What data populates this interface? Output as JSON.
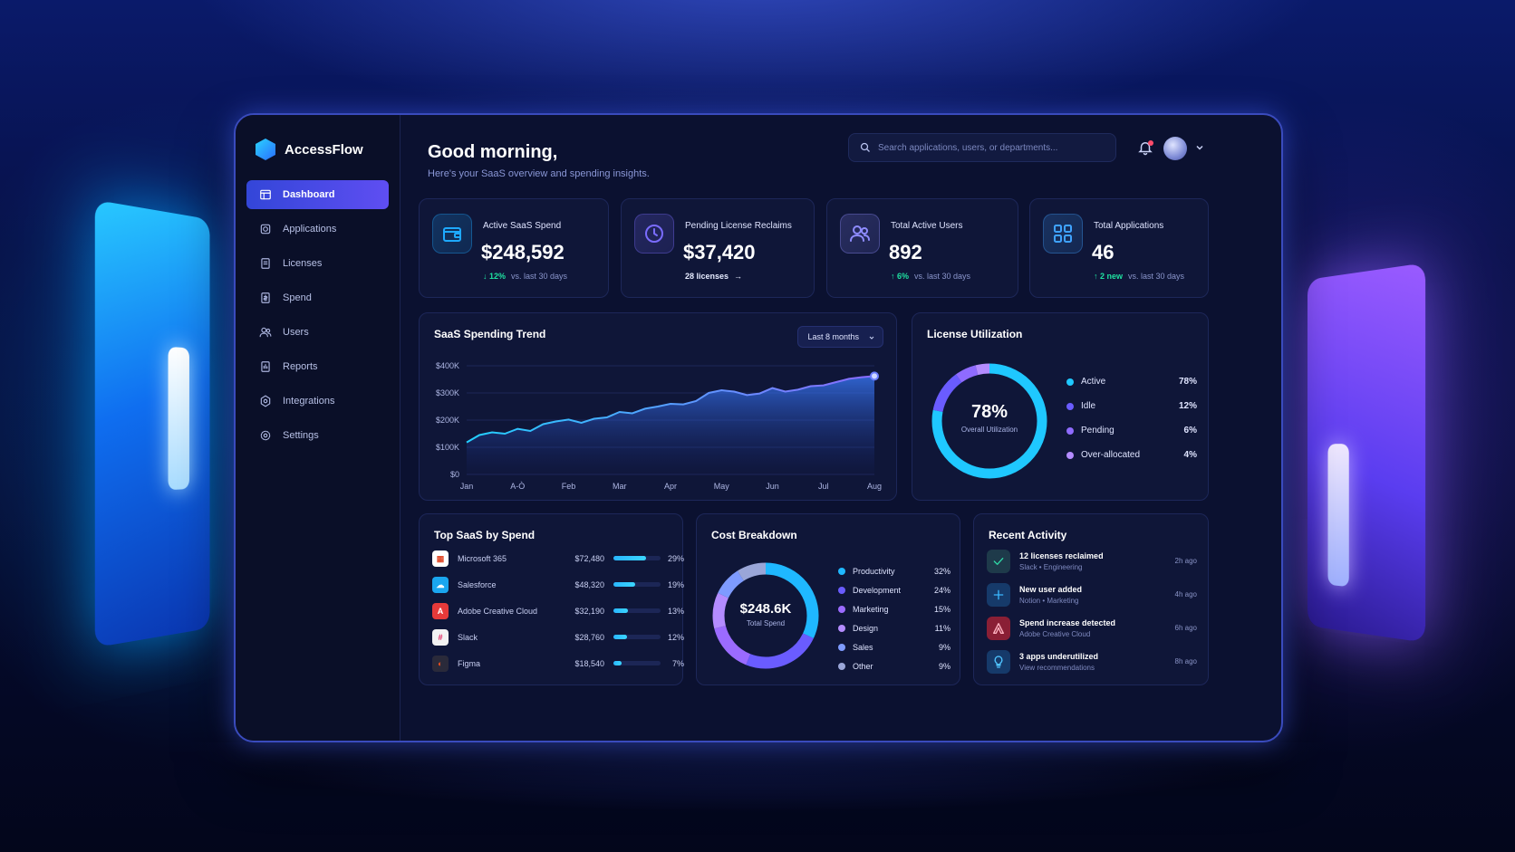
{
  "app": {
    "name": "AccessFlow"
  },
  "sidebar": {
    "items": [
      {
        "label": "Dashboard",
        "icon": "dashboard-icon",
        "active": true
      },
      {
        "label": "Applications",
        "icon": "applications-icon"
      },
      {
        "label": "Licenses",
        "icon": "licenses-icon"
      },
      {
        "label": "Spend",
        "icon": "spend-icon"
      },
      {
        "label": "Users",
        "icon": "users-icon"
      },
      {
        "label": "Reports",
        "icon": "reports-icon"
      },
      {
        "label": "Integrations",
        "icon": "integrations-icon"
      },
      {
        "label": "Settings",
        "icon": "settings-icon"
      }
    ]
  },
  "header": {
    "greeting": "Good morning,",
    "subtitle": "Here's your SaaS overview and spending insights.",
    "search_placeholder": "Search applications, users, or departments..."
  },
  "kpis": [
    {
      "label": "Active SaaS Spend",
      "value": "$248,592",
      "delta": "12%",
      "delta_direction": "down",
      "note": "vs. last 30 days",
      "icon": "wallet-icon"
    },
    {
      "label": "Pending License Reclaims",
      "value": "$37,420",
      "link": "28 licenses",
      "icon": "clock-icon"
    },
    {
      "label": "Total Active Users",
      "value": "892",
      "delta": "6%",
      "delta_direction": "up",
      "note": "vs. last 30 days",
      "icon": "users-icon"
    },
    {
      "label": "Total Applications",
      "value": "46",
      "delta": "2 new",
      "delta_direction": "up",
      "note": "vs. last 30 days",
      "icon": "grid-icon"
    }
  ],
  "trend": {
    "title": "SaaS Spending Trend",
    "range": "Last 8 months"
  },
  "utilization": {
    "title": "License Utilization",
    "center_value": "78%",
    "center_label": "Overall Utilization",
    "legend": [
      {
        "label": "Active",
        "pct": "78%",
        "value": 78,
        "color": "#1fc8ff"
      },
      {
        "label": "Idle",
        "pct": "12%",
        "value": 12,
        "color": "#6a5cff"
      },
      {
        "label": "Pending",
        "pct": "6%",
        "value": 6,
        "color": "#8f6bff"
      },
      {
        "label": "Over-allocated",
        "pct": "4%",
        "value": 4,
        "color": "#b48cff"
      }
    ]
  },
  "top_saas": {
    "title": "Top SaaS by Spend",
    "rows": [
      {
        "name": "Microsoft 365",
        "amount": "$72,480",
        "pct": "29%",
        "share": 0.29,
        "icon_color": "#ffffff",
        "icon": "ms365-icon"
      },
      {
        "name": "Salesforce",
        "amount": "$48,320",
        "pct": "19%",
        "share": 0.19,
        "icon_color": "#1aa6f0",
        "icon": "salesforce-icon"
      },
      {
        "name": "Adobe Creative Cloud",
        "amount": "$32,190",
        "pct": "13%",
        "share": 0.13,
        "icon_color": "#e63a3a",
        "icon": "adobe-icon"
      },
      {
        "name": "Slack",
        "amount": "$28,760",
        "pct": "12%",
        "share": 0.12,
        "icon_color": "#f2f2f2",
        "icon": "slack-icon"
      },
      {
        "name": "Figma",
        "amount": "$18,540",
        "pct": "7%",
        "share": 0.07,
        "icon_color": "#2a2a3a",
        "icon": "figma-icon"
      }
    ]
  },
  "cost": {
    "title": "Cost Breakdown",
    "center_value": "$248.6K",
    "center_label": "Total Spend",
    "legend": [
      {
        "label": "Productivity",
        "pct": "32%",
        "value": 32,
        "color": "#1fb8ff"
      },
      {
        "label": "Development",
        "pct": "24%",
        "value": 24,
        "color": "#6a5cff"
      },
      {
        "label": "Marketing",
        "pct": "15%",
        "value": 15,
        "color": "#9b6bff"
      },
      {
        "label": "Design",
        "pct": "11%",
        "value": 11,
        "color": "#b48cff"
      },
      {
        "label": "Sales",
        "pct": "9%",
        "value": 9,
        "color": "#7e9bff"
      },
      {
        "label": "Other",
        "pct": "9%",
        "value": 9,
        "color": "#9aa6d8"
      }
    ]
  },
  "activity": {
    "title": "Recent Activity",
    "items": [
      {
        "title": "12 licenses reclaimed",
        "sub": "Slack • Engineering",
        "time": "2h ago",
        "icon": "check-icon",
        "color": "#1e3a4a"
      },
      {
        "title": "New user added",
        "sub": "Notion • Marketing",
        "time": "4h ago",
        "icon": "plus-icon",
        "color": "#163a6a"
      },
      {
        "title": "Spend increase detected",
        "sub": "Adobe Creative Cloud",
        "time": "6h ago",
        "icon": "adobe-icon",
        "color": "#8a1f35"
      },
      {
        "title": "3 apps underutilized",
        "sub": "View recommendations",
        "time": "8h ago",
        "icon": "bulb-icon",
        "color": "#163a6a"
      }
    ]
  },
  "chart_data": {
    "type": "area",
    "title": "SaaS Spending Trend",
    "x_tick_labels": [
      "Jan",
      "A-Ò",
      "Feb",
      "Mar",
      "Apr",
      "May",
      "Jun",
      "Jul",
      "Aug"
    ],
    "y_tick_labels": [
      "$0",
      "$100K",
      "$200K",
      "$300K",
      "$400K"
    ],
    "ylim": [
      0,
      400000
    ],
    "xlim": [
      0,
      8
    ],
    "x": [
      0,
      0.25,
      0.5,
      0.75,
      1,
      1.25,
      1.5,
      1.75,
      2,
      2.25,
      2.5,
      2.75,
      3,
      3.25,
      3.5,
      3.75,
      4,
      4.25,
      4.5,
      4.75,
      5,
      5.25,
      5.5,
      5.75,
      6,
      6.25,
      6.5,
      6.75,
      7,
      7.25,
      7.5,
      7.75,
      8
    ],
    "values": [
      118000,
      145000,
      155000,
      150000,
      168000,
      160000,
      185000,
      195000,
      202000,
      190000,
      205000,
      210000,
      230000,
      225000,
      242000,
      250000,
      260000,
      258000,
      270000,
      300000,
      310000,
      305000,
      292000,
      298000,
      318000,
      305000,
      312000,
      325000,
      328000,
      340000,
      352000,
      358000,
      362000
    ]
  }
}
